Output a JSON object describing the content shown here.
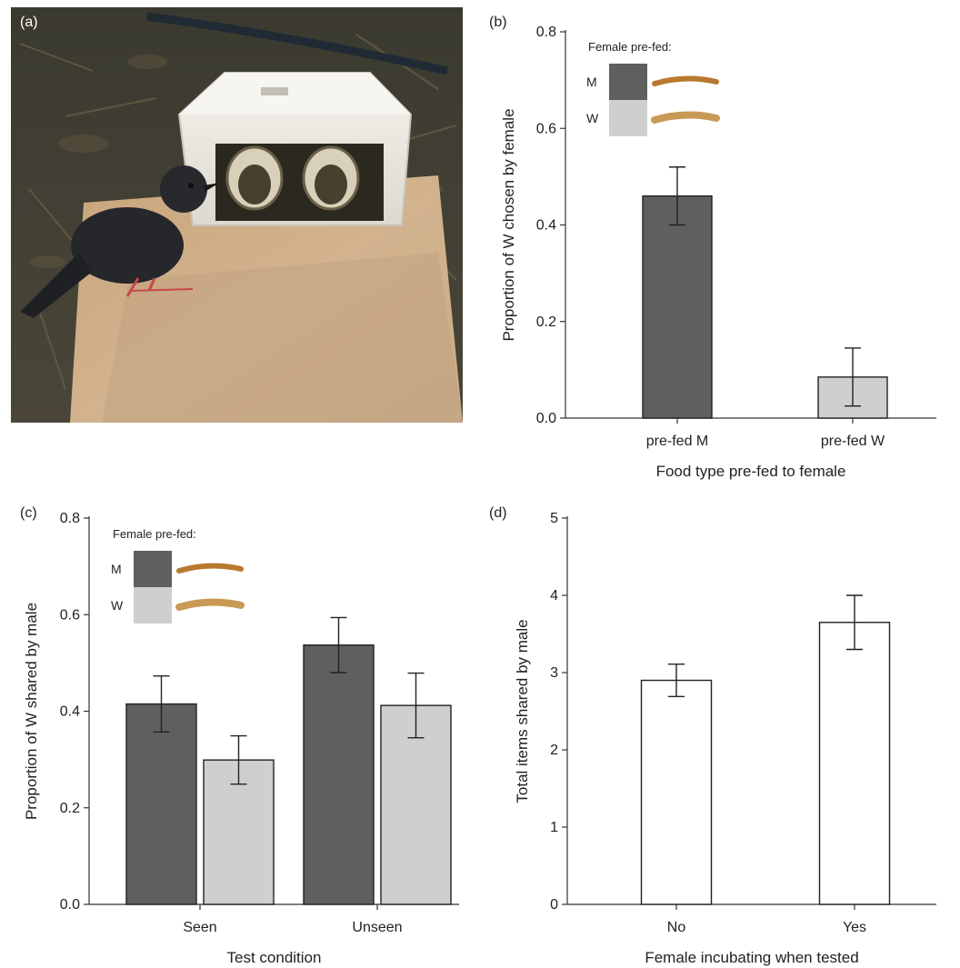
{
  "panels": {
    "a": {
      "label": "(a)"
    },
    "b": {
      "label": "(b)"
    },
    "c": {
      "label": "(c)"
    },
    "d": {
      "label": "(d)"
    }
  },
  "legend": {
    "title": "Female pre-fed:",
    "items": [
      {
        "key": "M",
        "color": "#5f5f5f"
      },
      {
        "key": "W",
        "color": "#cfcfcf"
      }
    ]
  },
  "chart_data": [
    {
      "panel": "b",
      "type": "bar",
      "categories": [
        "pre-fed M",
        "pre-fed W"
      ],
      "values": [
        0.46,
        0.085
      ],
      "errors": [
        0.06,
        0.06
      ],
      "colors": [
        "#5f5f5f",
        "#cfcfcf"
      ],
      "xlabel": "Food type pre-fed to female",
      "ylabel": "Proportion of W chosen by female",
      "ylim": [
        0,
        0.8
      ],
      "yticks": [
        "0.0",
        "0.2",
        "0.4",
        "0.6",
        "0.8"
      ],
      "legend_placement": "top-left"
    },
    {
      "panel": "c",
      "type": "bar",
      "categories": [
        "Seen",
        "Unseen"
      ],
      "series": [
        {
          "name": "M",
          "values": [
            0.415,
            0.537
          ],
          "errors": [
            0.058,
            0.057
          ],
          "color": "#5f5f5f"
        },
        {
          "name": "W",
          "values": [
            0.299,
            0.412
          ],
          "errors": [
            0.05,
            0.067
          ],
          "color": "#cfcfcf"
        }
      ],
      "xlabel": "Test condition",
      "ylabel": "Proportion of W shared by male",
      "ylim": [
        0,
        0.8
      ],
      "yticks": [
        "0.0",
        "0.2",
        "0.4",
        "0.6",
        "0.8"
      ],
      "legend_placement": "top-left"
    },
    {
      "panel": "d",
      "type": "bar",
      "categories": [
        "No",
        "Yes"
      ],
      "values": [
        2.9,
        3.65
      ],
      "errors": [
        0.21,
        0.35
      ],
      "colors": [
        "#ffffff",
        "#ffffff"
      ],
      "xlabel": "Female incubating when tested",
      "ylabel": "Total items shared by male",
      "ylim": [
        0,
        5
      ],
      "yticks": [
        "0",
        "1",
        "2",
        "3",
        "4",
        "5"
      ]
    }
  ]
}
